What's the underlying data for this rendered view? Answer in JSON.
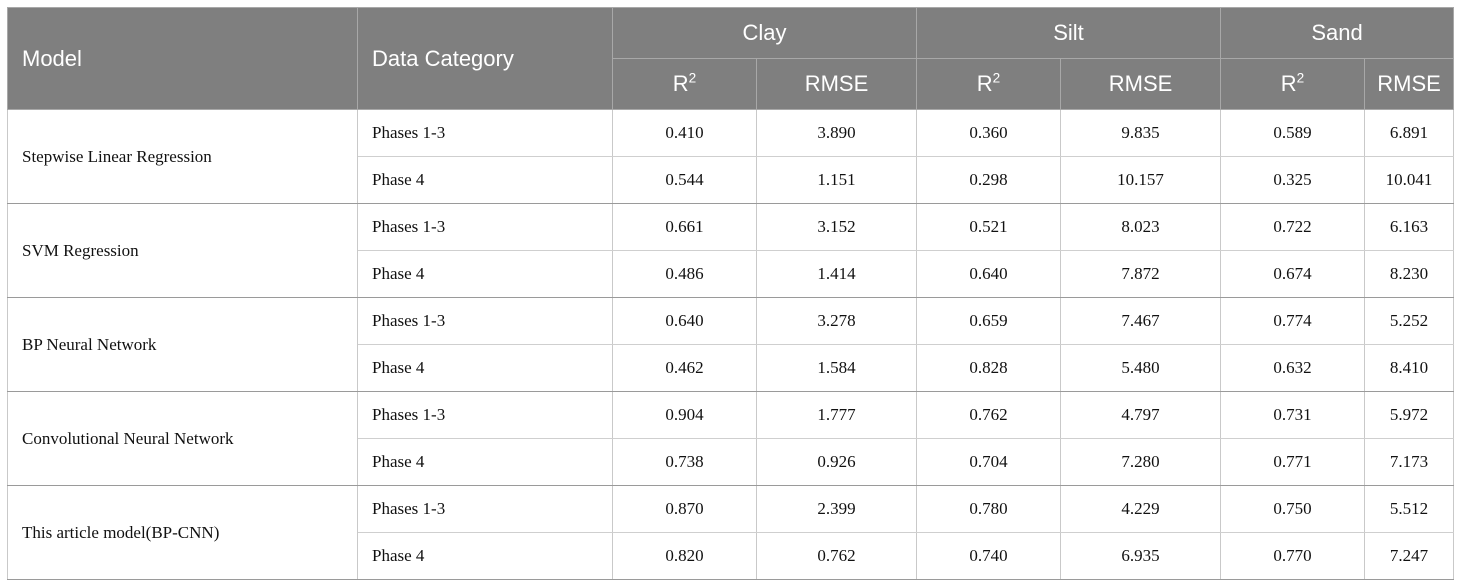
{
  "table": {
    "headers": {
      "model": "Model",
      "data_category": "Data Category",
      "groups": [
        "Clay",
        "Silt",
        "Sand"
      ],
      "r_base": "R",
      "r_sup": "2",
      "rmse": "RMSE"
    },
    "rows": [
      {
        "model": "Stepwise Linear Regression",
        "entries": [
          {
            "category": "Phases 1-3",
            "values": [
              "0.410",
              "3.890",
              "0.360",
              "9.835",
              "0.589",
              "6.891"
            ]
          },
          {
            "category": "Phase 4",
            "values": [
              "0.544",
              "1.151",
              "0.298",
              "10.157",
              "0.325",
              "10.041"
            ]
          }
        ]
      },
      {
        "model": "SVM Regression",
        "entries": [
          {
            "category": "Phases 1-3",
            "values": [
              "0.661",
              "3.152",
              "0.521",
              "8.023",
              "0.722",
              "6.163"
            ]
          },
          {
            "category": "Phase 4",
            "values": [
              "0.486",
              "1.414",
              "0.640",
              "7.872",
              "0.674",
              "8.230"
            ]
          }
        ]
      },
      {
        "model": "BP Neural Network",
        "entries": [
          {
            "category": "Phases 1-3",
            "values": [
              "0.640",
              "3.278",
              "0.659",
              "7.467",
              "0.774",
              "5.252"
            ]
          },
          {
            "category": "Phase 4",
            "values": [
              "0.462",
              "1.584",
              "0.828",
              "5.480",
              "0.632",
              "8.410"
            ]
          }
        ]
      },
      {
        "model": "Convolutional Neural Network",
        "entries": [
          {
            "category": "Phases 1-3",
            "values": [
              "0.904",
              "1.777",
              "0.762",
              "4.797",
              "0.731",
              "5.972"
            ]
          },
          {
            "category": "Phase 4",
            "values": [
              "0.738",
              "0.926",
              "0.704",
              "7.280",
              "0.771",
              "7.173"
            ]
          }
        ]
      },
      {
        "model": "This article model(BP-CNN)",
        "entries": [
          {
            "category": "Phases 1-3",
            "values": [
              "0.870",
              "2.399",
              "0.780",
              "4.229",
              "0.750",
              "5.512"
            ]
          },
          {
            "category": "Phase 4",
            "values": [
              "0.820",
              "0.762",
              "0.740",
              "6.935",
              "0.770",
              "7.247"
            ]
          }
        ]
      }
    ]
  },
  "colors": {
    "header_bg": "#7f7f7f",
    "header_text": "#ffffff",
    "body_text": "#111111"
  }
}
